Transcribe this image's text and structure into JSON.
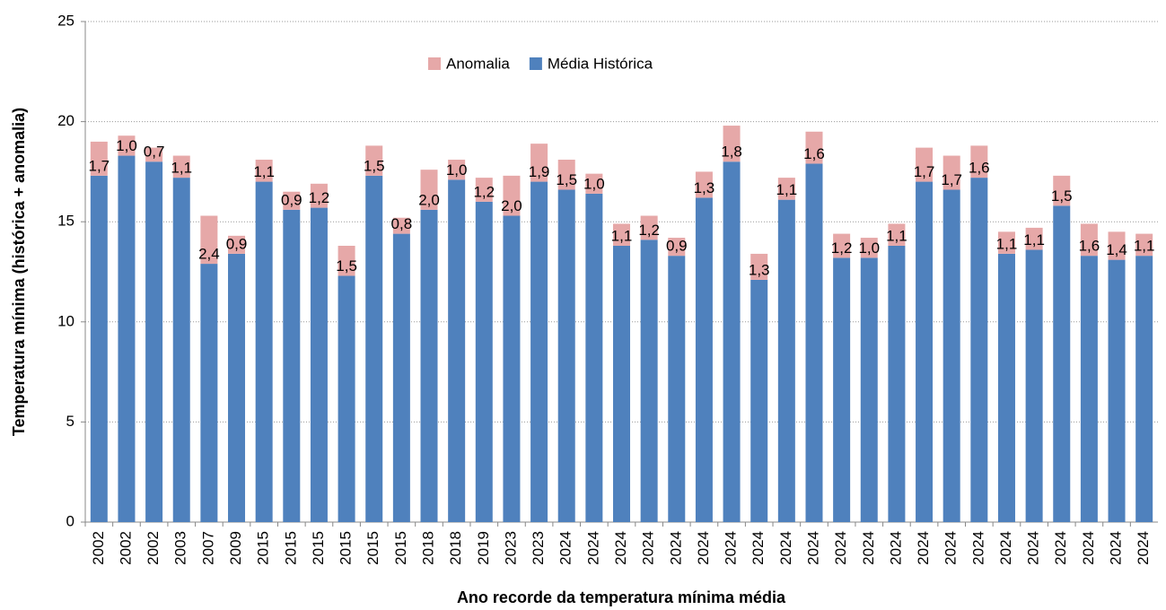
{
  "chart_data": {
    "type": "stacked_bar",
    "x_label": "Ano recorde da temperatura mínima média",
    "y_label": "Temperatura mínima (histórica + anomalia)",
    "categories": [
      "2002",
      "2002",
      "2002",
      "2003",
      "2007",
      "2009",
      "2015",
      "2015",
      "2015",
      "2015",
      "2015",
      "2015",
      "2018",
      "2018",
      "2019",
      "2023",
      "2023",
      "2024",
      "2024",
      "2024",
      "2024",
      "2024",
      "2024",
      "2024",
      "2024",
      "2024",
      "2024",
      "2024",
      "2024",
      "2024",
      "2024",
      "2024",
      "2024",
      "2024",
      "2024",
      "2024",
      "2024",
      "2024",
      "2024"
    ],
    "series": [
      {
        "name": "Média Histórica",
        "color": "#4f81bd",
        "values": [
          17.3,
          18.3,
          18.0,
          17.2,
          12.9,
          13.4,
          17.0,
          15.6,
          15.7,
          12.3,
          17.3,
          14.4,
          15.6,
          17.1,
          16.0,
          15.3,
          17.0,
          16.6,
          16.4,
          13.8,
          14.1,
          13.3,
          16.2,
          18.0,
          12.1,
          16.1,
          17.9,
          13.2,
          13.2,
          13.8,
          17.0,
          16.6,
          17.2,
          13.4,
          13.6,
          15.8,
          13.3,
          13.1,
          13.3
        ]
      },
      {
        "name": "Anomalia",
        "color": "#e6a8a8",
        "values": [
          1.7,
          1.0,
          0.7,
          1.1,
          2.4,
          0.9,
          1.1,
          0.9,
          1.2,
          1.5,
          1.5,
          0.8,
          2.0,
          1.0,
          1.2,
          2.0,
          1.9,
          1.5,
          1.0,
          1.1,
          1.2,
          0.9,
          1.3,
          1.8,
          1.3,
          1.1,
          1.6,
          1.2,
          1.0,
          1.1,
          1.7,
          1.7,
          1.6,
          1.1,
          1.1,
          1.5,
          1.6,
          1.4,
          1.1
        ],
        "value_labels": [
          "1,7",
          "1,0",
          "0,7",
          "1,1",
          "2,4",
          "0,9",
          "1,1",
          "0,9",
          "1,2",
          "1,5",
          "1,5",
          "0,8",
          "2,0",
          "1,0",
          "1,2",
          "2,0",
          "1,9",
          "1,5",
          "1,0",
          "1,1",
          "1,2",
          "0,9",
          "1,3",
          "1,8",
          "1,3",
          "1,1",
          "1,6",
          "1,2",
          "1,0",
          "1,1",
          "1,7",
          "1,7",
          "1,6",
          "1,1",
          "1,1",
          "1,5",
          "1,6",
          "1,4",
          "1,1"
        ]
      }
    ],
    "ylim": [
      0,
      25
    ],
    "yticks": [
      0,
      5,
      10,
      15,
      20,
      25
    ],
    "grid": true,
    "legend": "top"
  }
}
